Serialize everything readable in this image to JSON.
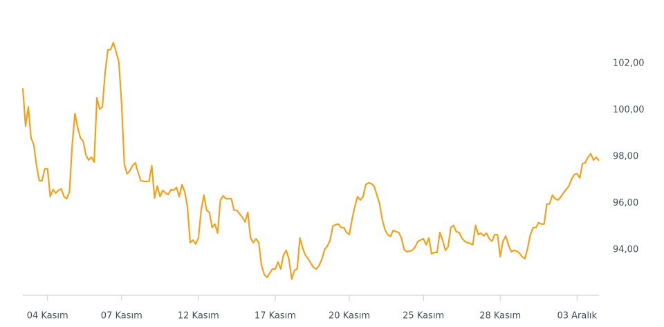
{
  "chart_data": {
    "type": "line",
    "categories": [
      null,
      null,
      null,
      null,
      null,
      null,
      null,
      null,
      null,
      "04 Kasım",
      null,
      null,
      null,
      null,
      null,
      null,
      null,
      null,
      null,
      null,
      null,
      null,
      null,
      null,
      null,
      null,
      null,
      null,
      null,
      null,
      null,
      null,
      null,
      null,
      null,
      null,
      "07 Kasım",
      null,
      null,
      null,
      null,
      null,
      null,
      null,
      null,
      null,
      null,
      null,
      null,
      null,
      null,
      null,
      null,
      null,
      null,
      null,
      null,
      null,
      null,
      null,
      null,
      null,
      null,
      null,
      "12 Kasım",
      null,
      null,
      null,
      null,
      null,
      null,
      null,
      null,
      null,
      null,
      null,
      null,
      null,
      null,
      null,
      null,
      null,
      null,
      null,
      null,
      null,
      null,
      null,
      null,
      null,
      null,
      null,
      "17 Kasım",
      null,
      null,
      null,
      null,
      null,
      null,
      null,
      null,
      null,
      null,
      null,
      null,
      null,
      null,
      null,
      null,
      null,
      null,
      null,
      null,
      null,
      null,
      null,
      null,
      null,
      null,
      "20 Kasım",
      null,
      null,
      null,
      null,
      null,
      null,
      null,
      null,
      null,
      null,
      null,
      null,
      null,
      null,
      null,
      null,
      null,
      null,
      null,
      null,
      null,
      null,
      null,
      null,
      null,
      null,
      "25 Kasım",
      null,
      null,
      null,
      null,
      null,
      null,
      null,
      null,
      null,
      null,
      null,
      null,
      null,
      null,
      null,
      null,
      null,
      null,
      null,
      null,
      null,
      null,
      null,
      null,
      null,
      null,
      null,
      "28 Kasım",
      null,
      null,
      null,
      null,
      null,
      null,
      null,
      null,
      null,
      null,
      null,
      null,
      null,
      null,
      null,
      null,
      null,
      null,
      null,
      null,
      null,
      null,
      null,
      null,
      null,
      null,
      null,
      "03 Aralık",
      null,
      null,
      null,
      null,
      null,
      null,
      null,
      null
    ],
    "values": [
      100.93,
      99.3,
      100.13,
      98.8,
      98.5,
      97.61,
      96.96,
      96.96,
      97.47,
      97.47,
      96.28,
      96.58,
      96.43,
      96.55,
      96.61,
      96.28,
      96.19,
      96.49,
      98.5,
      99.84,
      99.24,
      98.8,
      98.65,
      98.06,
      97.85,
      97.97,
      97.76,
      100.52,
      100.04,
      100.13,
      101.61,
      102.59,
      102.59,
      102.89,
      102.5,
      102.06,
      100.28,
      97.67,
      97.26,
      97.38,
      97.61,
      97.73,
      97.32,
      96.96,
      96.93,
      96.93,
      96.93,
      97.61,
      96.22,
      96.73,
      96.28,
      96.55,
      96.43,
      96.37,
      96.58,
      96.55,
      96.67,
      96.28,
      96.79,
      96.49,
      95.84,
      94.3,
      94.41,
      94.24,
      94.5,
      95.69,
      96.34,
      95.69,
      95.6,
      94.95,
      95.1,
      94.71,
      96.13,
      96.31,
      96.19,
      96.19,
      96.19,
      95.69,
      95.69,
      95.54,
      95.39,
      95.19,
      95.6,
      94.5,
      94.3,
      94.47,
      94.3,
      93.32,
      92.93,
      92.81,
      92.99,
      93.17,
      93.17,
      93.47,
      93.17,
      93.76,
      93.97,
      93.59,
      92.73,
      93.11,
      93.17,
      94.5,
      94.06,
      93.76,
      93.61,
      93.41,
      93.23,
      93.17,
      93.32,
      93.59,
      94.0,
      94.15,
      94.41,
      95.01,
      95.07,
      95.1,
      94.95,
      94.95,
      94.74,
      94.65,
      95.3,
      95.84,
      96.28,
      96.13,
      96.28,
      96.79,
      96.87,
      96.84,
      96.73,
      96.37,
      95.99,
      95.3,
      94.86,
      94.65,
      94.56,
      94.83,
      94.77,
      94.74,
      94.5,
      94.0,
      93.91,
      93.94,
      93.97,
      94.12,
      94.36,
      94.41,
      94.47,
      94.21,
      94.5,
      93.82,
      93.88,
      93.88,
      94.74,
      94.41,
      93.97,
      94.12,
      94.95,
      95.04,
      94.77,
      94.74,
      94.5,
      94.36,
      94.3,
      94.27,
      94.21,
      95.04,
      94.65,
      94.71,
      94.59,
      94.71,
      94.47,
      94.36,
      94.65,
      94.65,
      93.7,
      94.36,
      94.59,
      94.21,
      93.91,
      93.97,
      93.94,
      93.85,
      93.7,
      93.61,
      94.06,
      94.65,
      94.95,
      94.95,
      95.16,
      95.1,
      95.1,
      95.96,
      95.96,
      96.34,
      96.19,
      96.13,
      96.25,
      96.43,
      96.58,
      96.73,
      97.02,
      97.23,
      97.26,
      97.08,
      97.7,
      97.73,
      97.97,
      98.12,
      97.85,
      97.97,
      97.82
    ],
    "color": "#f5a01a",
    "ylim": [
      92.04,
      104.13
    ],
    "yticks": [
      {
        "value": 94,
        "label": "94,00"
      },
      {
        "value": 96,
        "label": "96,00"
      },
      {
        "value": 98,
        "label": "98,00"
      },
      {
        "value": 100,
        "label": "100,00"
      },
      {
        "value": 102,
        "label": "102,00"
      }
    ],
    "grid": false
  }
}
